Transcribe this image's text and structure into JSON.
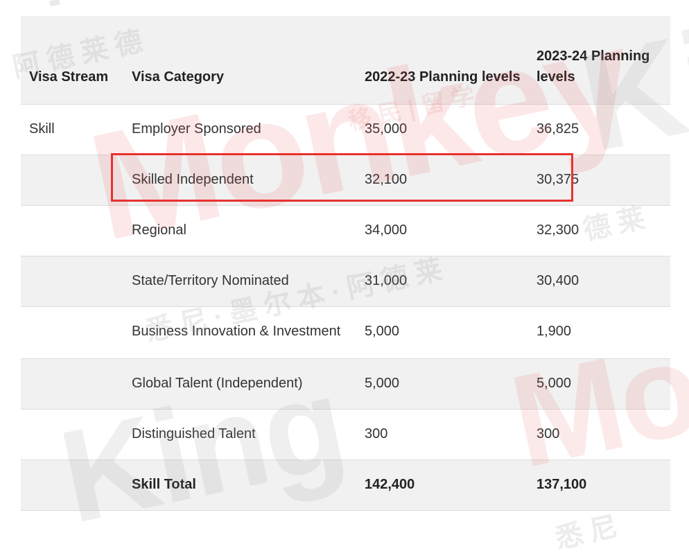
{
  "table": {
    "headers": {
      "stream": "Visa Stream",
      "category": "Visa Category",
      "plan_2022_23": "2022-23 Planning levels",
      "plan_2023_24": "2023-24 Planning levels"
    },
    "rows": [
      {
        "stream": "Skill",
        "category": "Employer Sponsored",
        "plan_2022_23": "35,000",
        "plan_2023_24": "36,825"
      },
      {
        "stream": "",
        "category": "Skilled Independent",
        "plan_2022_23": "32,100",
        "plan_2023_24": "30,375"
      },
      {
        "stream": "",
        "category": "Regional",
        "plan_2022_23": "34,000",
        "plan_2023_24": "32,300"
      },
      {
        "stream": "",
        "category": "State/Territory Nominated",
        "plan_2022_23": "31,000",
        "plan_2023_24": "30,400"
      },
      {
        "stream": "",
        "category": "Business Innovation & Investment",
        "plan_2022_23": "5,000",
        "plan_2023_24": "1,900"
      },
      {
        "stream": "",
        "category": "Global Talent (Independent)",
        "plan_2022_23": "5,000",
        "plan_2023_24": "5,000"
      },
      {
        "stream": "",
        "category": "Distinguished Talent",
        "plan_2022_23": "300",
        "plan_2023_24": "300"
      },
      {
        "stream": "",
        "category": "Skill Total",
        "plan_2022_23": "142,400",
        "plan_2023_24": "137,100"
      }
    ],
    "highlighted_row": "Skilled Independent"
  },
  "watermark": {
    "brand_monkey": "Monkey",
    "brand_king": "King",
    "brand_mon": "Mon",
    "brand_ki": "Ki",
    "cjk_1": "阿德莱德",
    "cjk_2": "移民|留学",
    "cjk_3": "悉尼·墨尔本·阿德莱",
    "cjk_4": "悉尼",
    "cjk_5": "德莱"
  },
  "colors": {
    "highlight_border": "#e8312f",
    "row_alt_bg": "#f1f1f1",
    "divider": "#dcdcdc"
  }
}
